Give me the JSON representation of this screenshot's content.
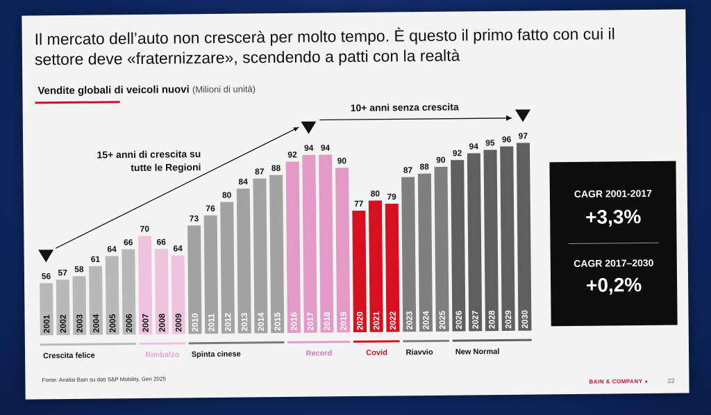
{
  "title": "Il mercato dell’auto non crescerà per molto tempo. È questo il primo fatto con cui il settore deve «fraternizzare», scendendo a patti con la realtà",
  "subtitle": "Vendite globali di veicoli nuovi",
  "subtitle_unit": "(Milioni di unità)",
  "annotations": {
    "growth": "15+ anni di crescita su tutte le Regioni",
    "growth_line1": "15+ anni di crescita su",
    "growth_line2": "tutte le Regioni",
    "stagnation": "10+ anni senza crescita"
  },
  "kpi": [
    {
      "label": "CAGR 2001-2017",
      "value": "+3,3%"
    },
    {
      "label": "CAGR 2017–2030",
      "value": "+0,2%"
    }
  ],
  "source": "Fonte: Analisi Bain su dati S&P Mobility, Gen 2025",
  "brand": "BAIN & COMPANY",
  "page_number": "22",
  "colors": {
    "crescita_felice": "#b9b9b9",
    "rimbalzo": "#efc3de",
    "spinta_cinese": "#a3a3a3",
    "record": "#e39ac7",
    "covid": "#d7101f",
    "riavvio": "#7f7f7f",
    "new_normal": "#5f5f5f",
    "accent": "#c8102e"
  },
  "chart_data": {
    "type": "bar",
    "title": "Vendite globali di veicoli nuovi (Milioni di unità)",
    "xlabel": "",
    "ylabel": "Milioni di unità",
    "ylim": [
      0,
      100
    ],
    "categories": [
      "2001",
      "2002",
      "2003",
      "2004",
      "2005",
      "2006",
      "2007",
      "2008",
      "2009",
      "2010",
      "2011",
      "2012",
      "2013",
      "2014",
      "2015",
      "2016",
      "2017",
      "2018",
      "2019",
      "2020",
      "2021",
      "2022",
      "2023",
      "2024",
      "2025",
      "2026",
      "2027",
      "2028",
      "2029",
      "2030"
    ],
    "values": [
      56,
      57,
      58,
      61,
      64,
      66,
      70,
      66,
      64,
      73,
      76,
      80,
      84,
      87,
      88,
      92,
      94,
      94,
      90,
      77,
      80,
      79,
      87,
      88,
      90,
      92,
      94,
      95,
      96,
      97
    ],
    "phases": [
      {
        "name": "Crescita felice",
        "start": 0,
        "end": 5,
        "color_key": "crescita_felice",
        "bar_color": "#b9b9b9",
        "line_color": "#b9b9b9",
        "label_color": "#111111"
      },
      {
        "name": "Rimbalzo",
        "start": 6,
        "end": 8,
        "color_key": "rimbalzo",
        "bar_color": "#efc3de",
        "line_color": "#efc3de",
        "label_color": "#e8a6cf"
      },
      {
        "name": "Spinta cinese",
        "start": 9,
        "end": 14,
        "color_key": "spinta_cinese",
        "bar_color": "#a3a3a3",
        "line_color": "#7a7a7a",
        "label_color": "#111111"
      },
      {
        "name": "Record",
        "start": 15,
        "end": 18,
        "color_key": "record",
        "bar_color": "#e39ac7",
        "line_color": "#e39ac7",
        "label_color": "#d57ab3"
      },
      {
        "name": "Covid",
        "start": 19,
        "end": 21,
        "color_key": "covid",
        "bar_color": "#d7101f",
        "line_color": "#d7101f",
        "label_color": "#d7101f"
      },
      {
        "name": "Riavvio",
        "start": 22,
        "end": 24,
        "color_key": "riavvio",
        "bar_color": "#7f7f7f",
        "line_color": "#7f7f7f",
        "label_color": "#111111"
      },
      {
        "name": "New Normal",
        "start": 25,
        "end": 29,
        "color_key": "new_normal",
        "bar_color": "#5f5f5f",
        "line_color": "#5f5f5f",
        "label_color": "#111111"
      }
    ],
    "markers": [
      {
        "category": "2001",
        "type": "triangle-down"
      },
      {
        "category": "2017",
        "type": "triangle-down"
      },
      {
        "category": "2030",
        "type": "triangle-down"
      }
    ]
  }
}
